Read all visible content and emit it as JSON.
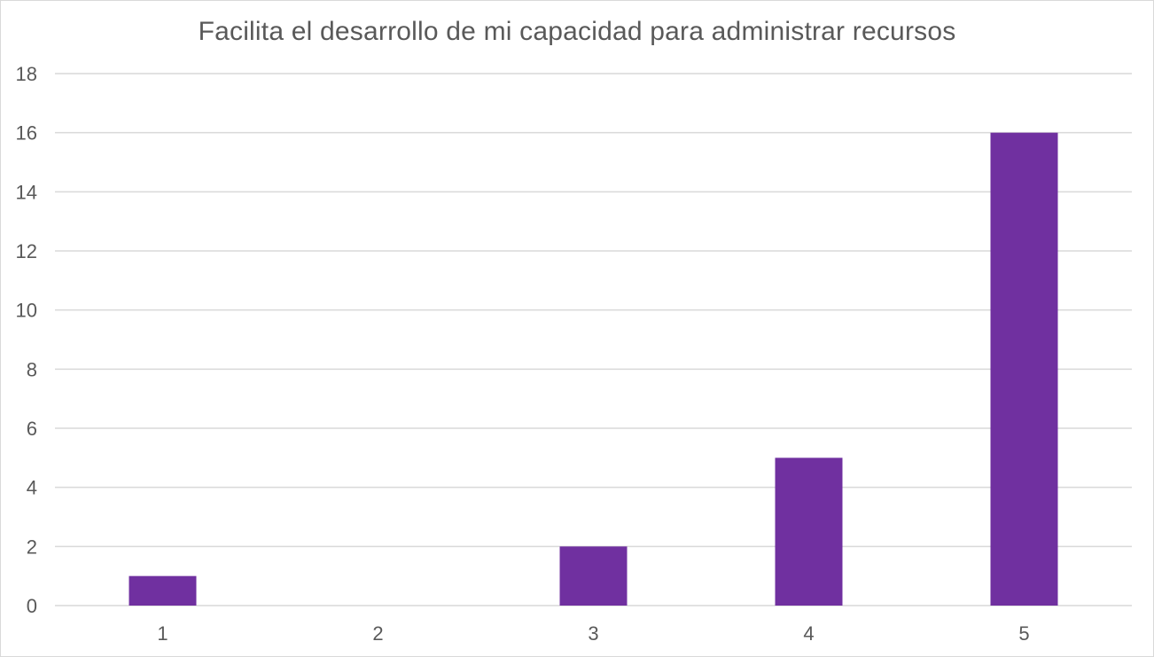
{
  "chart_data": {
    "type": "bar",
    "title": "Facilita el desarrollo de mi capacidad para administrar recursos",
    "xlabel": "",
    "ylabel": "",
    "categories": [
      "1",
      "2",
      "3",
      "4",
      "5"
    ],
    "values": [
      1,
      0,
      2,
      5,
      16
    ],
    "ylim": [
      0,
      18
    ],
    "yticks": [
      "0",
      "2",
      "4",
      "6",
      "8",
      "10",
      "12",
      "14",
      "16",
      "18"
    ],
    "grid": true,
    "legend": "none",
    "bar_color": "#7030a0",
    "grid_color": "#d9d9d9"
  }
}
